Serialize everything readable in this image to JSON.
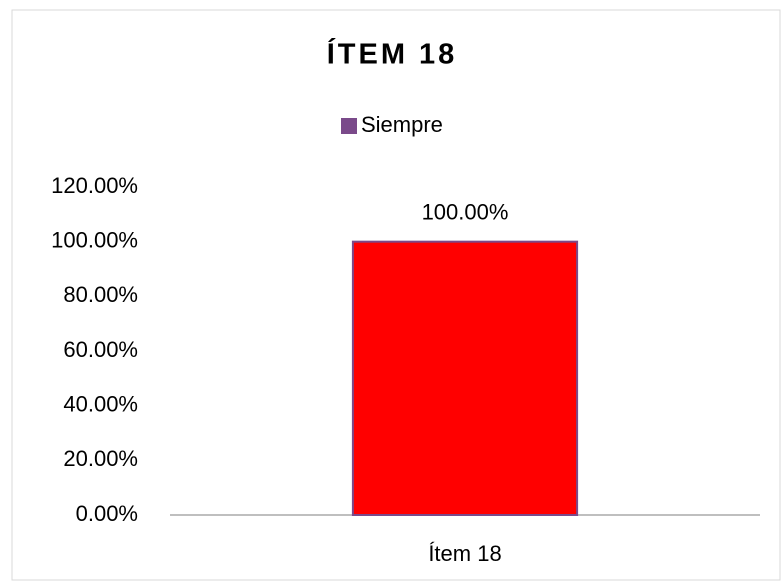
{
  "chart_data": {
    "type": "bar",
    "title": "ÍTEM 18",
    "categories": [
      "Ítem 18"
    ],
    "series": [
      {
        "name": "Siempre",
        "color": "#ff0000",
        "edge_color": "#7a4a8a",
        "values": [
          100
        ],
        "value_labels": [
          "100.00%"
        ]
      }
    ],
    "ylim": [
      0,
      120
    ],
    "yticks": [
      {
        "value": 0,
        "label": "0.00%"
      },
      {
        "value": 20,
        "label": "20.00%"
      },
      {
        "value": 40,
        "label": "40.00%"
      },
      {
        "value": 60,
        "label": "60.00%"
      },
      {
        "value": 80,
        "label": "80.00%"
      },
      {
        "value": 100,
        "label": "100.00%"
      },
      {
        "value": 120,
        "label": "120.00%"
      }
    ],
    "grid": false,
    "legend": "top"
  }
}
